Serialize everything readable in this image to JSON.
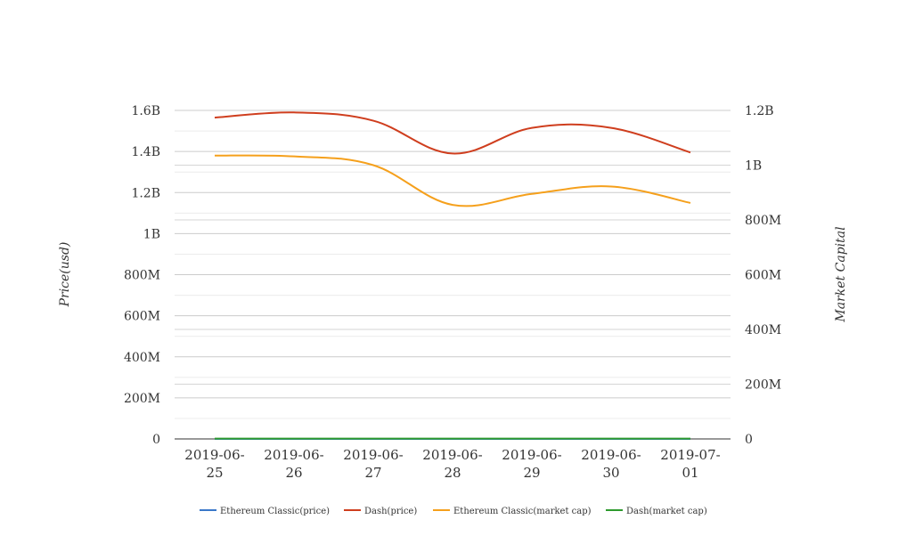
{
  "chart_data": {
    "type": "line",
    "categories": [
      "2019-06-25",
      "2019-06-26",
      "2019-06-27",
      "2019-06-28",
      "2019-06-29",
      "2019-06-30",
      "2019-07-01"
    ],
    "category_lines": [
      [
        "2019-06-",
        "25"
      ],
      [
        "2019-06-",
        "26"
      ],
      [
        "2019-06-",
        "27"
      ],
      [
        "2019-06-",
        "28"
      ],
      [
        "2019-06-",
        "29"
      ],
      [
        "2019-06-",
        "30"
      ],
      [
        "2019-07-",
        "01"
      ]
    ],
    "y_left": {
      "label": "Price(usd)",
      "range": [
        0,
        1600000000
      ],
      "ticks": [
        0,
        200000000,
        400000000,
        600000000,
        800000000,
        1000000000,
        1200000000,
        1400000000,
        1600000000
      ],
      "tick_labels": [
        "0",
        "200M",
        "400M",
        "600M",
        "800M",
        "1B",
        "1.2B",
        "1.4B",
        "1.6B"
      ]
    },
    "y_right": {
      "label": "Market Capital",
      "range": [
        0,
        1200000000
      ],
      "ticks": [
        0,
        200000000,
        400000000,
        600000000,
        800000000,
        1000000000,
        1200000000
      ],
      "tick_labels": [
        "0",
        "200M",
        "400M",
        "600M",
        "800M",
        "1B",
        "1.2B"
      ]
    },
    "grid": true,
    "legend_position": "bottom",
    "series": [
      {
        "name": "Ethereum Classic(price)",
        "axis": "left",
        "color": "#3a78c9",
        "values": [
          7.9,
          8.0,
          7.6,
          7.1,
          7.3,
          7.4,
          6.8
        ]
      },
      {
        "name": "Dash(price)",
        "axis": "left",
        "color": "#cf3e1e",
        "values": [
          1565000000,
          1590000000,
          1550000000,
          1390000000,
          1515000000,
          1515000000,
          1395000000
        ]
      },
      {
        "name": "Ethereum Classic(market cap)",
        "axis": "right",
        "color": "#f5a01c",
        "values": [
          1035000000,
          1032000000,
          1000000000,
          855000000,
          895000000,
          922000000,
          862000000
        ]
      },
      {
        "name": "Dash(market cap)",
        "axis": "right",
        "color": "#2e9a2e",
        "values": [
          1180000,
          1195000,
          1160000,
          1030000,
          1120000,
          1110000,
          1030000
        ]
      }
    ]
  }
}
